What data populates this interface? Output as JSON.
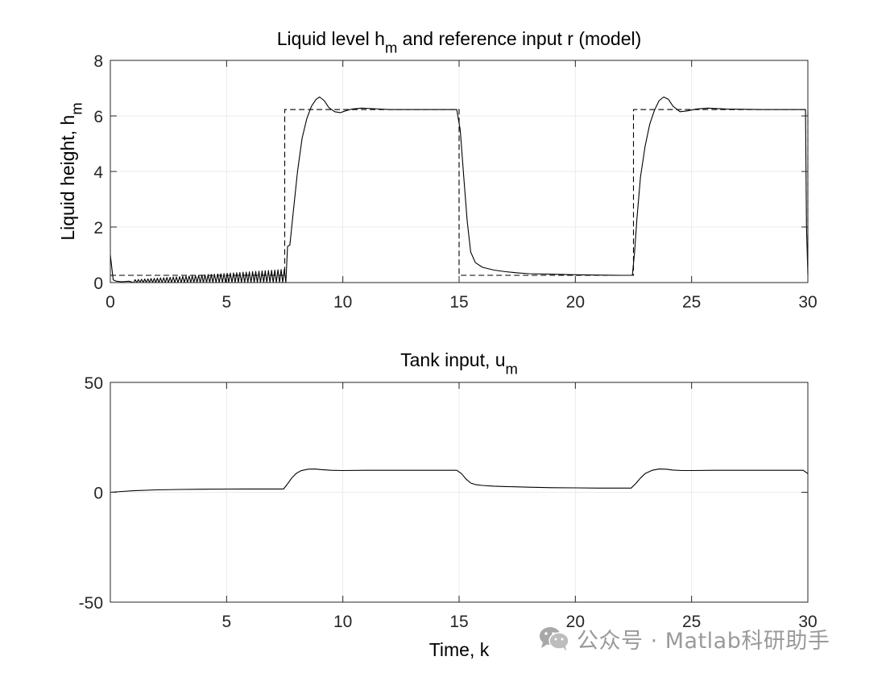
{
  "chart_data": [
    {
      "type": "line",
      "title": "Liquid level h",
      "title_sub": "m",
      "title_rest": " and reference input r (model)",
      "ylabel": "Liquid height, h",
      "ylabel_sub": "m",
      "xlabel": "",
      "xlim": [
        0,
        30
      ],
      "ylim": [
        0,
        8
      ],
      "xticks": [
        0,
        5,
        10,
        15,
        20,
        25,
        30
      ],
      "yticks": [
        0,
        2,
        4,
        6,
        8
      ],
      "grid": true,
      "series": [
        {
          "style": "solid",
          "color": "#000000",
          "x": [
            0,
            0.12,
            0.25,
            0.5,
            0.8,
            1.0,
            7.55,
            7.62,
            7.72,
            7.85,
            8.05,
            8.25,
            8.45,
            8.65,
            8.85,
            9.0,
            9.2,
            9.4,
            9.65,
            9.9,
            10.1,
            10.4,
            10.8,
            11.3,
            12.0,
            13.0,
            14.0,
            14.9,
            15.05,
            15.2,
            15.35,
            15.5,
            15.7,
            16.0,
            16.5,
            17.0,
            17.5,
            18.0,
            19.0,
            20.0,
            21.0,
            22.0,
            22.45,
            22.55,
            22.65,
            22.8,
            23.0,
            23.2,
            23.4,
            23.6,
            23.8,
            24.0,
            24.2,
            24.5,
            24.8,
            25.2,
            25.7,
            26.5,
            28.0,
            29.0,
            29.9,
            29.94,
            30.0
          ],
          "y": [
            1.0,
            0.1,
            0.05,
            0.03,
            0.05,
            0.0,
            0.0,
            1.3,
            1.35,
            2.4,
            4.0,
            5.2,
            5.9,
            6.35,
            6.6,
            6.68,
            6.55,
            6.3,
            6.15,
            6.12,
            6.18,
            6.25,
            6.28,
            6.26,
            6.23,
            6.23,
            6.23,
            6.23,
            5.5,
            3.8,
            2.2,
            1.1,
            0.72,
            0.55,
            0.45,
            0.39,
            0.35,
            0.32,
            0.3,
            0.28,
            0.27,
            0.26,
            0.26,
            1.1,
            2.3,
            3.8,
            4.9,
            5.7,
            6.2,
            6.55,
            6.68,
            6.6,
            6.35,
            6.15,
            6.18,
            6.25,
            6.28,
            6.25,
            6.23,
            6.23,
            6.23,
            2.0,
            0.3
          ]
        },
        {
          "style": "oscillation",
          "color": "#000000",
          "x_range": [
            1.0,
            7.55
          ],
          "amplitude_range": [
            0.1,
            0.48
          ],
          "cycles": 48
        },
        {
          "style": "dashed",
          "color": "#000000",
          "x": [
            0,
            7.5,
            7.5,
            15.0,
            15.0,
            22.5,
            22.5,
            30.0,
            30.0
          ],
          "y": [
            0.26,
            0.26,
            6.23,
            6.23,
            0.26,
            0.26,
            6.23,
            6.23,
            0.26
          ]
        }
      ]
    },
    {
      "type": "line",
      "title": "Tank input, u",
      "title_sub": "m",
      "title_rest": "",
      "xlabel": "Time, k",
      "ylabel": "",
      "xlim": [
        0,
        30
      ],
      "ylim": [
        -50,
        50
      ],
      "xticks": [
        5,
        10,
        15,
        20,
        25,
        30
      ],
      "yticks": [
        -50,
        0,
        50
      ],
      "grid": true,
      "series": [
        {
          "style": "solid",
          "color": "#000000",
          "x": [
            0,
            0.5,
            1.0,
            2.0,
            3.0,
            4.0,
            5.0,
            6.0,
            7.0,
            7.45,
            7.6,
            7.8,
            8.0,
            8.2,
            8.5,
            8.8,
            9.1,
            9.5,
            10.0,
            11.0,
            12.0,
            13.0,
            14.0,
            14.9,
            15.1,
            15.3,
            15.5,
            15.7,
            16.0,
            16.5,
            17.0,
            18.0,
            19.0,
            20.0,
            21.0,
            22.0,
            22.4,
            22.6,
            22.8,
            23.0,
            23.3,
            23.6,
            23.9,
            24.2,
            24.6,
            25.0,
            26.0,
            27.0,
            28.0,
            29.0,
            29.8,
            30.0
          ],
          "y": [
            0,
            0.35,
            0.7,
            1.1,
            1.3,
            1.4,
            1.45,
            1.5,
            1.5,
            1.5,
            3.5,
            6.5,
            8.6,
            9.8,
            10.5,
            10.6,
            10.3,
            10.0,
            9.9,
            10.0,
            10.0,
            10.0,
            10.0,
            10.0,
            8.5,
            6.0,
            4.2,
            3.5,
            3.1,
            2.8,
            2.6,
            2.3,
            2.1,
            2.0,
            1.9,
            1.9,
            1.9,
            4.0,
            6.5,
            8.5,
            10.0,
            10.6,
            10.5,
            10.1,
            9.9,
            9.9,
            10.0,
            10.0,
            10.0,
            10.0,
            10.0,
            8.5
          ]
        }
      ]
    }
  ],
  "watermark": {
    "icon": "wechat-icon",
    "text": "公众号 · Matlab科研助手"
  }
}
